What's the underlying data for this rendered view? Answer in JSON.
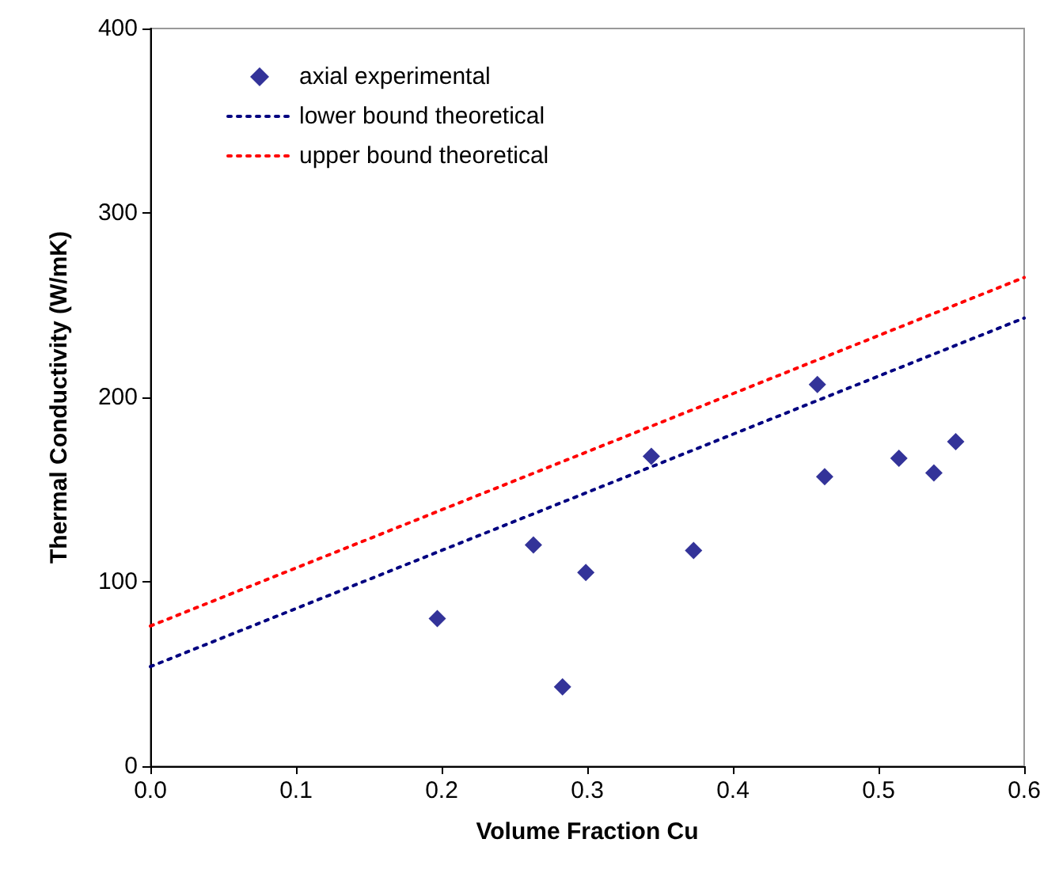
{
  "chart_data": {
    "type": "scatter",
    "xlabel": "Volume Fraction Cu",
    "ylabel": "Thermal Conductivity (W/mK)",
    "xlim": [
      0,
      0.6
    ],
    "ylim": [
      0,
      400
    ],
    "xticks": [
      {
        "value": 0,
        "label": "0.0"
      },
      0.1,
      0.2,
      0.3,
      0.4,
      0.5,
      0.6
    ],
    "yticks": [
      0,
      100,
      200,
      300,
      400
    ],
    "grid": false,
    "legend": "top left",
    "series": [
      {
        "name": "axial experimental",
        "marker": "diamond",
        "color": "#000080",
        "x": [
          0.197,
          0.263,
          0.283,
          0.299,
          0.344,
          0.373,
          0.458,
          0.463,
          0.514,
          0.538,
          0.553
        ],
        "values": [
          80,
          120,
          43,
          105,
          168,
          117,
          207,
          157,
          167,
          159,
          176
        ]
      },
      {
        "name": "lower bound theoretical",
        "type": "line",
        "marker": "none",
        "line_style": "dotted",
        "color": "#000080",
        "x": [
          0,
          0.6
        ],
        "values": [
          54,
          243
        ]
      },
      {
        "name": "upper bound theoretical",
        "type": "line",
        "marker": "none",
        "line_style": "dotted",
        "color": "#ff0000",
        "x": [
          0,
          0.6
        ],
        "values": [
          76,
          265
        ]
      }
    ]
  }
}
